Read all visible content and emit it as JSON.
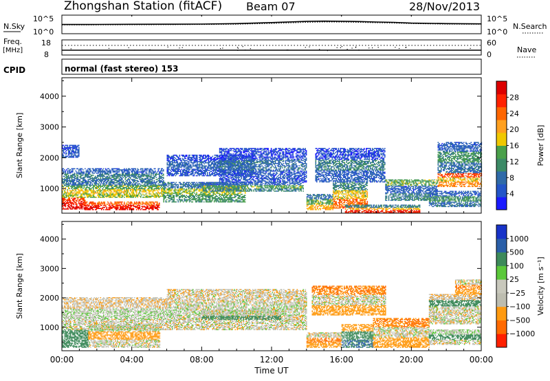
{
  "header": {
    "title": "Zhongshan Station (fitACF)",
    "beam": "Beam 07",
    "date": "28/Nov/2013"
  },
  "colors": {
    "power_scale": [
      "#1a1aff",
      "#2355c8",
      "#2f6aa8",
      "#3c8a66",
      "#4aa04a",
      "#f0c800",
      "#ffa020",
      "#ff6600",
      "#ff2200",
      "#dd0000"
    ],
    "velocity_scale": [
      "#1833c8",
      "#2a5fa8",
      "#3d8a5a",
      "#5bc83a",
      "#c8c8bc",
      "#bdbdb0",
      "#ff9a10",
      "#ff6a00",
      "#ff2000",
      "#dd0000"
    ]
  },
  "chart_data": [
    {
      "type": "line",
      "panel": "N.Sky / N.Search",
      "left_label": "N.Sky",
      "right_label": "N.Search",
      "left_ticks": [
        "10^5",
        "10^0"
      ],
      "right_ticks": [
        "10^5",
        "10^0"
      ],
      "y_scale": "log",
      "ylim": [
        1,
        100000
      ],
      "x": [
        0,
        2,
        4,
        6,
        8,
        10,
        12,
        14,
        15,
        16,
        17,
        18,
        19,
        20,
        22,
        24
      ],
      "series": [
        {
          "name": "N.Sky",
          "style": "solid",
          "values": [
            300,
            320,
            350,
            380,
            420,
            600,
            1400,
            3500,
            4500,
            4000,
            3200,
            2200,
            1600,
            900,
            600,
            500
          ]
        },
        {
          "name": "N.Search",
          "style": "dotted",
          "values": [
            200,
            220,
            240,
            260,
            300,
            380,
            700,
            1600,
            2200,
            2000,
            1600,
            1200,
            900,
            600,
            400,
            350
          ]
        }
      ]
    },
    {
      "type": "scatter",
      "panel": "Freq / Nave",
      "left_label": "Freq.",
      "left_unit": "[MHz]",
      "right_label": "Nave",
      "left_ticks": [
        "18",
        "8"
      ],
      "right_ticks": [
        "60",
        "0"
      ],
      "ylim": [
        8,
        18
      ],
      "x": [
        0,
        24
      ],
      "series": [
        {
          "name": "Freq.",
          "values": [
            11,
            11
          ]
        },
        {
          "name": "Nave",
          "values": [
            40,
            40
          ]
        }
      ]
    },
    {
      "type": "table",
      "panel": "CPID",
      "label": "CPID",
      "text": "normal (fast stereo) 153"
    },
    {
      "type": "heatmap",
      "panel": "power",
      "ylabel": "Slant Range [km]",
      "ylim": [
        200,
        4600
      ],
      "yticks": [
        1000,
        2000,
        3000,
        4000
      ],
      "xlim": [
        0,
        24
      ],
      "colorbar_label": "Power [dB]",
      "colorbar_ticks": [
        4,
        8,
        12,
        16,
        20,
        24,
        28
      ],
      "colorbar_range": [
        0,
        32
      ],
      "regions": [
        {
          "t0": 0.0,
          "t1": 1.3,
          "r0": 320,
          "r1": 700,
          "values": [
            30,
            28,
            26
          ]
        },
        {
          "t0": 1.3,
          "t1": 5.6,
          "r0": 300,
          "r1": 550,
          "values": [
            29,
            28,
            24
          ]
        },
        {
          "t0": 0.0,
          "t1": 5.8,
          "r0": 700,
          "r1": 1100,
          "values": [
            16,
            18,
            14
          ]
        },
        {
          "t0": 0.0,
          "t1": 5.8,
          "r0": 1100,
          "r1": 1650,
          "values": [
            8,
            10,
            6
          ]
        },
        {
          "t0": 5.8,
          "t1": 10.5,
          "r0": 550,
          "r1": 1200,
          "values": [
            12,
            16,
            8
          ]
        },
        {
          "t0": 6.0,
          "t1": 11.0,
          "r0": 1400,
          "r1": 2100,
          "values": [
            5,
            7,
            4
          ]
        },
        {
          "t0": 8.0,
          "t1": 13.8,
          "r0": 900,
          "r1": 1200,
          "values": [
            10,
            14,
            6
          ]
        },
        {
          "t0": 9.0,
          "t1": 14.0,
          "r0": 1200,
          "r1": 2300,
          "values": [
            5,
            8,
            4
          ]
        },
        {
          "t0": 0.0,
          "t1": 1.0,
          "r0": 2000,
          "r1": 2400,
          "values": [
            6,
            5,
            4
          ]
        },
        {
          "t0": 14.0,
          "t1": 15.5,
          "r0": 300,
          "r1": 800,
          "values": [
            20,
            14,
            8
          ]
        },
        {
          "t0": 15.5,
          "t1": 17.5,
          "r0": 350,
          "r1": 1200,
          "values": [
            24,
            18,
            10
          ]
        },
        {
          "t0": 16.2,
          "t1": 20.5,
          "r0": 200,
          "r1": 450,
          "values": [
            28,
            20,
            10
          ]
        },
        {
          "t0": 14.5,
          "t1": 18.5,
          "r0": 1200,
          "r1": 2300,
          "values": [
            6,
            10,
            4
          ]
        },
        {
          "t0": 18.5,
          "t1": 21.5,
          "r0": 600,
          "r1": 1300,
          "values": [
            10,
            6,
            14
          ]
        },
        {
          "t0": 21.5,
          "t1": 24.0,
          "r0": 1050,
          "r1": 1500,
          "values": [
            22,
            18,
            26
          ]
        },
        {
          "t0": 21.5,
          "t1": 24.0,
          "r0": 1500,
          "r1": 2500,
          "values": [
            8,
            12,
            6
          ]
        },
        {
          "t0": 21.0,
          "t1": 24.0,
          "r0": 400,
          "r1": 900,
          "values": [
            8,
            12,
            6
          ]
        }
      ]
    },
    {
      "type": "heatmap",
      "panel": "velocity",
      "ylabel": "Slant Range [km]",
      "ylim": [
        200,
        4600
      ],
      "yticks": [
        1000,
        2000,
        3000,
        4000
      ],
      "xlim": [
        0,
        24
      ],
      "xticks": [
        "00:00",
        "04:00",
        "08:00",
        "12:00",
        "16:00",
        "20:00",
        "00:00"
      ],
      "xlabel": "Time UT",
      "colorbar_label": "Velocity [m s⁻¹]",
      "colorbar_ticks": [
        "1000",
        "500",
        "100",
        "25",
        "−25",
        "−100",
        "−500",
        "−1000"
      ],
      "regions": [
        {
          "t0": 0.0,
          "t1": 1.5,
          "r0": 300,
          "r1": 900,
          "values": [
            200,
            150,
            250
          ]
        },
        {
          "t0": 1.5,
          "t1": 5.6,
          "r0": 300,
          "r1": 1100,
          "values": [
            0,
            -150,
            10
          ]
        },
        {
          "t0": 0.0,
          "t1": 6.0,
          "r0": 900,
          "r1": 2000,
          "values": [
            0,
            10,
            -10
          ]
        },
        {
          "t0": 6.0,
          "t1": 14.0,
          "r0": 900,
          "r1": 2300,
          "values": [
            0,
            5,
            -5
          ]
        },
        {
          "t0": 8.0,
          "t1": 12.5,
          "r0": 1250,
          "r1": 1600,
          "values": [
            150,
            0,
            0
          ]
        },
        {
          "t0": 14.0,
          "t1": 16.0,
          "r0": 300,
          "r1": 800,
          "values": [
            -150,
            -300,
            0
          ]
        },
        {
          "t0": 16.0,
          "t1": 17.8,
          "r0": 300,
          "r1": 1100,
          "values": [
            300,
            150,
            -150
          ]
        },
        {
          "t0": 14.3,
          "t1": 18.5,
          "r0": 1400,
          "r1": 2400,
          "values": [
            -150,
            0,
            -300
          ]
        },
        {
          "t0": 17.8,
          "t1": 21.0,
          "r0": 300,
          "r1": 1300,
          "values": [
            -150,
            0,
            -300
          ]
        },
        {
          "t0": 21.0,
          "t1": 24.0,
          "r0": 400,
          "r1": 900,
          "values": [
            0,
            150,
            10
          ]
        },
        {
          "t0": 21.0,
          "t1": 24.0,
          "r0": 1100,
          "r1": 1500,
          "values": [
            0,
            5,
            0
          ]
        },
        {
          "t0": 21.0,
          "t1": 24.0,
          "r0": 1500,
          "r1": 2100,
          "values": [
            0,
            150,
            -10
          ]
        },
        {
          "t0": 22.5,
          "t1": 24.0,
          "r0": 2100,
          "r1": 2600,
          "values": [
            -150,
            -300,
            0
          ]
        }
      ]
    }
  ]
}
